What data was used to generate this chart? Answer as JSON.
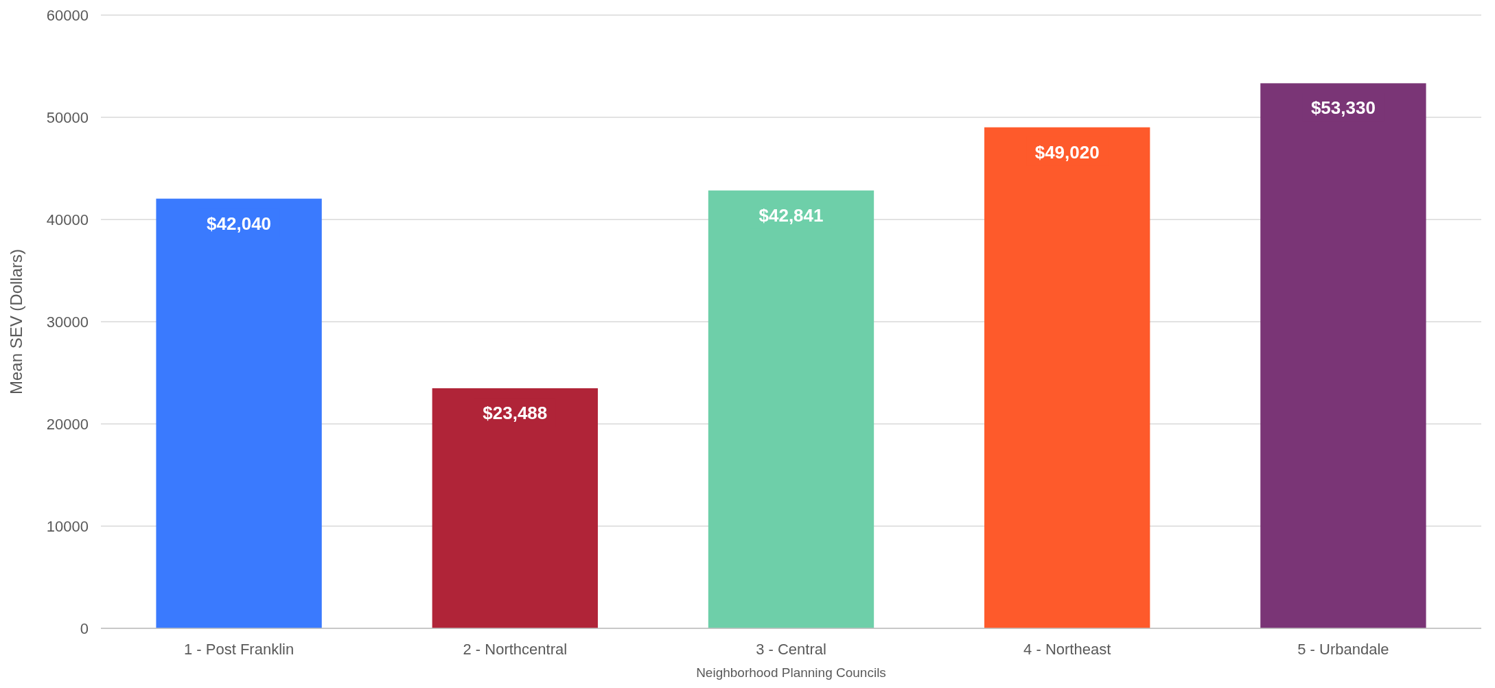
{
  "chart_data": {
    "type": "bar",
    "xlabel": "Neighborhood Planning Councils",
    "ylabel": "Mean SEV (Dollars)",
    "categories": [
      "1 - Post Franklin",
      "2 - Northcentral",
      "3 - Central",
      "4 - Northeast",
      "5 - Urbandale"
    ],
    "values": [
      42040,
      23488,
      42841,
      49020,
      53330
    ],
    "colors": [
      "#3a7afe",
      "#b02438",
      "#6ecfa9",
      "#fe5a2b",
      "#7a3576"
    ],
    "value_labels": [
      "$42,040",
      "$23,488",
      "$42,841",
      "$49,020",
      "$53,330"
    ],
    "ylim": [
      0,
      60000
    ],
    "yticks": [
      0,
      10000,
      20000,
      30000,
      40000,
      50000,
      60000
    ],
    "grid": "y"
  }
}
